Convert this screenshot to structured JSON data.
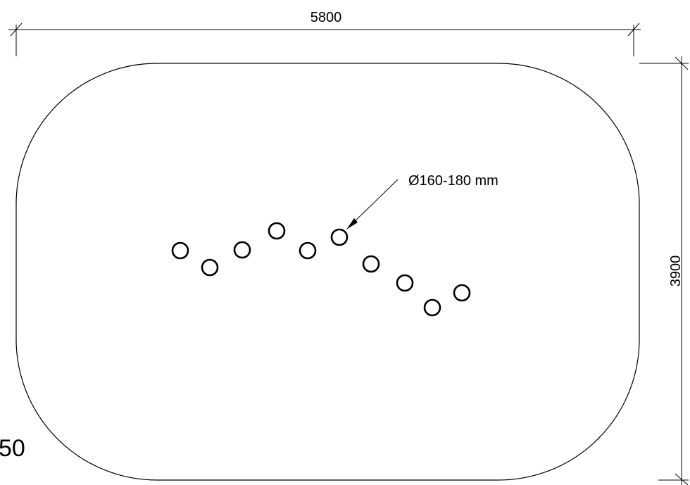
{
  "drawing": {
    "width_dimension": "5800",
    "height_dimension": "3900",
    "hole_callout": "Ø160-180 mm",
    "corner_text": "50",
    "line_color": "#000000",
    "hole_count": 10
  }
}
